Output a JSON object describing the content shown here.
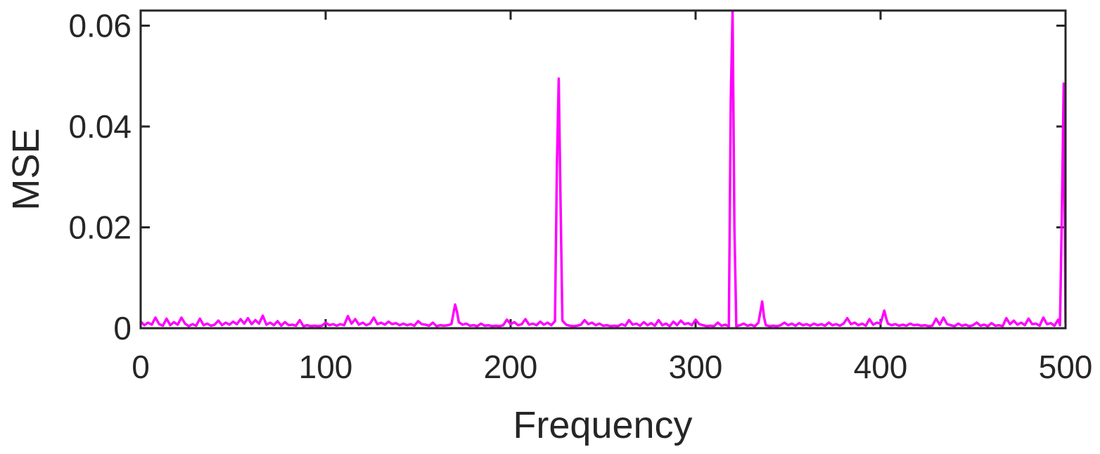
{
  "chart_data": {
    "type": "line",
    "title": "",
    "xlabel": "Frequency",
    "ylabel": "MSE",
    "xlim": [
      0,
      500
    ],
    "ylim": [
      0,
      0.063
    ],
    "xticks": [
      0,
      100,
      200,
      300,
      400,
      500
    ],
    "xtick_labels": [
      "0",
      "100",
      "200",
      "300",
      "400",
      "500"
    ],
    "yticks": [
      0,
      0.02,
      0.04,
      0.06
    ],
    "ytick_labels": [
      "0",
      "0.02",
      "0.04",
      "0.06"
    ],
    "grid": false,
    "legend": "none",
    "series": [
      {
        "color": "#ff00ff",
        "points": [
          [
            0,
            0.0013
          ],
          [
            2,
            0.0006
          ],
          [
            4,
            0.0011
          ],
          [
            6,
            0.0007
          ],
          [
            8,
            0.0021
          ],
          [
            10,
            0.0008
          ],
          [
            12,
            0.0005
          ],
          [
            14,
            0.0019
          ],
          [
            16,
            0.0006
          ],
          [
            18,
            0.0012
          ],
          [
            20,
            0.0007
          ],
          [
            22,
            0.0021
          ],
          [
            24,
            0.0009
          ],
          [
            26,
            0.0004
          ],
          [
            28,
            0.0008
          ],
          [
            30,
            0.0005
          ],
          [
            32,
            0.0019
          ],
          [
            34,
            0.0006
          ],
          [
            36,
            0.0009
          ],
          [
            38,
            0.0005
          ],
          [
            40,
            0.0007
          ],
          [
            42,
            0.0015
          ],
          [
            44,
            0.0006
          ],
          [
            46,
            0.0011
          ],
          [
            48,
            0.0007
          ],
          [
            50,
            0.0013
          ],
          [
            52,
            0.0008
          ],
          [
            54,
            0.0018
          ],
          [
            56,
            0.0009
          ],
          [
            58,
            0.002
          ],
          [
            60,
            0.0008
          ],
          [
            62,
            0.0016
          ],
          [
            64,
            0.0009
          ],
          [
            66,
            0.0025
          ],
          [
            68,
            0.0007
          ],
          [
            70,
            0.0011
          ],
          [
            72,
            0.0006
          ],
          [
            74,
            0.0014
          ],
          [
            76,
            0.0005
          ],
          [
            78,
            0.0012
          ],
          [
            80,
            0.0006
          ],
          [
            82,
            0.0007
          ],
          [
            84,
            0.0005
          ],
          [
            86,
            0.0016
          ],
          [
            88,
            0.0004
          ],
          [
            90,
            0.0006
          ],
          [
            92,
            0.0004
          ],
          [
            94,
            0.0005
          ],
          [
            96,
            0.0004
          ],
          [
            98,
            0.0005
          ],
          [
            100,
            0.0011
          ],
          [
            102,
            0.0006
          ],
          [
            104,
            0.0008
          ],
          [
            106,
            0.0005
          ],
          [
            108,
            0.0008
          ],
          [
            110,
            0.0006
          ],
          [
            112,
            0.0024
          ],
          [
            114,
            0.0009
          ],
          [
            116,
            0.0018
          ],
          [
            118,
            0.0007
          ],
          [
            120,
            0.0011
          ],
          [
            122,
            0.0006
          ],
          [
            124,
            0.0009
          ],
          [
            126,
            0.0021
          ],
          [
            128,
            0.0008
          ],
          [
            130,
            0.0011
          ],
          [
            132,
            0.0007
          ],
          [
            134,
            0.0013
          ],
          [
            136,
            0.0008
          ],
          [
            138,
            0.001
          ],
          [
            140,
            0.0006
          ],
          [
            142,
            0.0009
          ],
          [
            144,
            0.0006
          ],
          [
            146,
            0.0008
          ],
          [
            148,
            0.0005
          ],
          [
            150,
            0.0014
          ],
          [
            152,
            0.0008
          ],
          [
            154,
            0.0007
          ],
          [
            156,
            0.0005
          ],
          [
            158,
            0.0011
          ],
          [
            160,
            0.0004
          ],
          [
            162,
            0.0006
          ],
          [
            164,
            0.0005
          ],
          [
            166,
            0.0006
          ],
          [
            168,
            0.0008
          ],
          [
            170,
            0.0047
          ],
          [
            171,
            0.0033
          ],
          [
            172,
            0.0012
          ],
          [
            174,
            0.0007
          ],
          [
            176,
            0.0009
          ],
          [
            178,
            0.0005
          ],
          [
            180,
            0.0006
          ],
          [
            182,
            0.0004
          ],
          [
            184,
            0.0009
          ],
          [
            186,
            0.0005
          ],
          [
            188,
            0.0006
          ],
          [
            190,
            0.0004
          ],
          [
            192,
            0.0005
          ],
          [
            194,
            0.0004
          ],
          [
            196,
            0.0006
          ],
          [
            198,
            0.0017
          ],
          [
            200,
            0.0008
          ],
          [
            202,
            0.0012
          ],
          [
            204,
            0.0006
          ],
          [
            206,
            0.0008
          ],
          [
            208,
            0.0018
          ],
          [
            210,
            0.0007
          ],
          [
            212,
            0.0009
          ],
          [
            214,
            0.0006
          ],
          [
            216,
            0.0013
          ],
          [
            218,
            0.0007
          ],
          [
            220,
            0.0011
          ],
          [
            222,
            0.0006
          ],
          [
            224,
            0.0014
          ],
          [
            225,
            0.032
          ],
          [
            226,
            0.0495
          ],
          [
            227,
            0.025
          ],
          [
            228,
            0.0015
          ],
          [
            230,
            0.0007
          ],
          [
            232,
            0.0005
          ],
          [
            234,
            0.0004
          ],
          [
            236,
            0.0005
          ],
          [
            238,
            0.0007
          ],
          [
            240,
            0.0016
          ],
          [
            242,
            0.0008
          ],
          [
            244,
            0.0011
          ],
          [
            246,
            0.0006
          ],
          [
            248,
            0.0009
          ],
          [
            250,
            0.0005
          ],
          [
            252,
            0.0006
          ],
          [
            254,
            0.0004
          ],
          [
            256,
            0.0005
          ],
          [
            258,
            0.0004
          ],
          [
            260,
            0.0008
          ],
          [
            262,
            0.0005
          ],
          [
            264,
            0.0016
          ],
          [
            266,
            0.0007
          ],
          [
            268,
            0.0009
          ],
          [
            270,
            0.0005
          ],
          [
            272,
            0.0012
          ],
          [
            274,
            0.0006
          ],
          [
            276,
            0.001
          ],
          [
            278,
            0.0005
          ],
          [
            280,
            0.0016
          ],
          [
            282,
            0.0006
          ],
          [
            284,
            0.0009
          ],
          [
            286,
            0.0004
          ],
          [
            288,
            0.0013
          ],
          [
            290,
            0.0006
          ],
          [
            292,
            0.0015
          ],
          [
            294,
            0.0008
          ],
          [
            296,
            0.001
          ],
          [
            298,
            0.0006
          ],
          [
            300,
            0.0017
          ],
          [
            302,
            0.0008
          ],
          [
            304,
            0.0006
          ],
          [
            306,
            0.0004
          ],
          [
            308,
            0.0005
          ],
          [
            310,
            0.0004
          ],
          [
            312,
            0.0011
          ],
          [
            314,
            0.0005
          ],
          [
            316,
            0.0007
          ],
          [
            318,
            0.0004
          ],
          [
            319,
            0.045
          ],
          [
            320,
            0.063
          ],
          [
            321,
            0.02
          ],
          [
            322,
            0.0004
          ],
          [
            324,
            0.0006
          ],
          [
            326,
            0.0009
          ],
          [
            328,
            0.0005
          ],
          [
            330,
            0.0007
          ],
          [
            332,
            0.0004
          ],
          [
            334,
            0.0011
          ],
          [
            336,
            0.0053
          ],
          [
            337,
            0.0022
          ],
          [
            338,
            0.0006
          ],
          [
            340,
            0.0004
          ],
          [
            342,
            0.0005
          ],
          [
            344,
            0.0004
          ],
          [
            346,
            0.0006
          ],
          [
            348,
            0.0011
          ],
          [
            350,
            0.0006
          ],
          [
            352,
            0.0009
          ],
          [
            354,
            0.0005
          ],
          [
            356,
            0.001
          ],
          [
            358,
            0.0006
          ],
          [
            360,
            0.0008
          ],
          [
            362,
            0.0005
          ],
          [
            364,
            0.0009
          ],
          [
            366,
            0.0006
          ],
          [
            368,
            0.0008
          ],
          [
            370,
            0.0005
          ],
          [
            372,
            0.0011
          ],
          [
            374,
            0.0006
          ],
          [
            376,
            0.0008
          ],
          [
            378,
            0.0005
          ],
          [
            380,
            0.0009
          ],
          [
            382,
            0.002
          ],
          [
            384,
            0.0008
          ],
          [
            386,
            0.0011
          ],
          [
            388,
            0.0006
          ],
          [
            390,
            0.0009
          ],
          [
            392,
            0.0005
          ],
          [
            394,
            0.0018
          ],
          [
            396,
            0.0007
          ],
          [
            398,
            0.0011
          ],
          [
            400,
            0.0009
          ],
          [
            402,
            0.0035
          ],
          [
            403,
            0.002
          ],
          [
            404,
            0.0009
          ],
          [
            406,
            0.0006
          ],
          [
            408,
            0.0008
          ],
          [
            410,
            0.0005
          ],
          [
            412,
            0.0007
          ],
          [
            414,
            0.0005
          ],
          [
            416,
            0.0009
          ],
          [
            418,
            0.0006
          ],
          [
            420,
            0.0007
          ],
          [
            422,
            0.0005
          ],
          [
            424,
            0.0006
          ],
          [
            426,
            0.0004
          ],
          [
            428,
            0.0005
          ],
          [
            430,
            0.0019
          ],
          [
            432,
            0.0007
          ],
          [
            434,
            0.0021
          ],
          [
            436,
            0.0008
          ],
          [
            438,
            0.0006
          ],
          [
            440,
            0.0004
          ],
          [
            442,
            0.0009
          ],
          [
            444,
            0.0005
          ],
          [
            446,
            0.0007
          ],
          [
            448,
            0.0004
          ],
          [
            450,
            0.0006
          ],
          [
            452,
            0.0011
          ],
          [
            454,
            0.0005
          ],
          [
            456,
            0.0007
          ],
          [
            458,
            0.0004
          ],
          [
            460,
            0.001
          ],
          [
            462,
            0.0005
          ],
          [
            464,
            0.0006
          ],
          [
            466,
            0.0004
          ],
          [
            468,
            0.002
          ],
          [
            470,
            0.0008
          ],
          [
            472,
            0.0015
          ],
          [
            474,
            0.0007
          ],
          [
            476,
            0.0011
          ],
          [
            478,
            0.0006
          ],
          [
            480,
            0.0019
          ],
          [
            482,
            0.0008
          ],
          [
            484,
            0.0009
          ],
          [
            486,
            0.0005
          ],
          [
            488,
            0.0021
          ],
          [
            490,
            0.0008
          ],
          [
            492,
            0.001
          ],
          [
            494,
            0.0005
          ],
          [
            496,
            0.0017
          ],
          [
            497,
            0.0006
          ],
          [
            498,
            0.022
          ],
          [
            499,
            0.0485
          ],
          [
            500,
            0.001
          ]
        ]
      }
    ]
  }
}
